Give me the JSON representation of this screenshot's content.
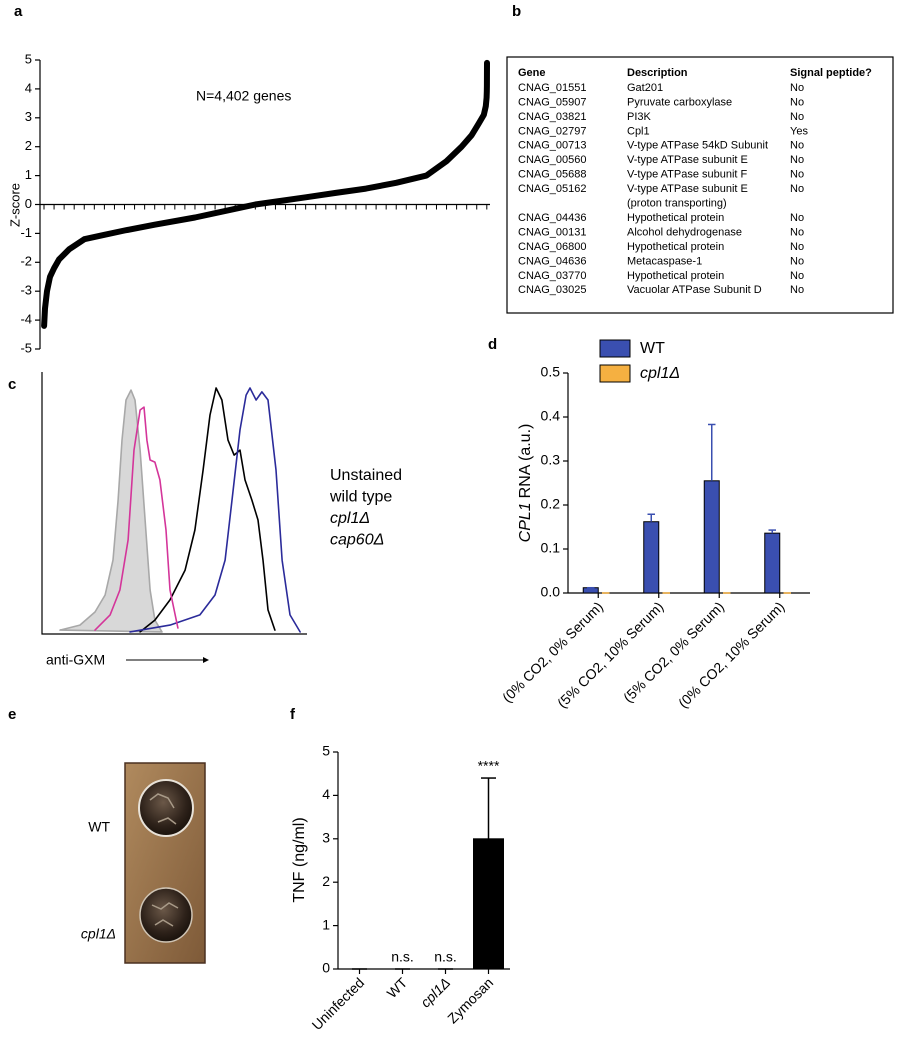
{
  "panel_labels": [
    "a",
    "b",
    "c",
    "d",
    "e",
    "f"
  ],
  "chart_data": [
    {
      "type": "line",
      "annotation": "N=4,402 genes",
      "ylabel": "Z-score",
      "color": "#000000",
      "x": [
        1,
        10,
        30,
        60,
        100,
        150,
        250,
        400,
        600,
        800,
        1100,
        1500,
        1900,
        2100,
        2300,
        2600,
        2900,
        3200,
        3500,
        3800,
        4000,
        4150,
        4250,
        4320,
        4370,
        4390,
        4398,
        4400,
        4401,
        4402
      ],
      "values": [
        -4.2,
        -3.6,
        -3.0,
        -2.5,
        -2.2,
        -1.9,
        -1.55,
        -1.2,
        -1.05,
        -0.9,
        -0.7,
        -0.45,
        -0.15,
        0,
        0.1,
        0.25,
        0.4,
        0.55,
        0.75,
        1.0,
        1.5,
        2.0,
        2.4,
        2.8,
        3.1,
        3.4,
        3.7,
        3.9,
        4.1,
        4.9
      ],
      "xlim": [
        0,
        4402
      ],
      "xticks": [
        0,
        100,
        200,
        300,
        400,
        500,
        600,
        700,
        800,
        900,
        1000,
        1100,
        1200,
        1300,
        1400,
        1500,
        1600,
        1700,
        1800,
        1900,
        2000,
        2100,
        2200,
        2300,
        2400,
        2500,
        2600,
        2700,
        2800,
        2900,
        3000,
        3100,
        3200,
        3300,
        3400,
        3500,
        3600,
        3700,
        3800,
        3900,
        4000,
        4100,
        4200,
        4300,
        4400
      ],
      "ylim": [
        -5,
        5
      ],
      "yticks": [
        -5,
        -4,
        -3,
        -2,
        -1,
        0,
        1,
        2,
        3,
        4,
        5
      ]
    },
    {
      "type": "line",
      "xlabel": "anti-GXM",
      "xlim": [
        0,
        100
      ],
      "ylim": [
        0,
        100
      ],
      "series": [
        {
          "name": "Unstained",
          "color": "#a8a8a8",
          "fill": true,
          "x": [
            6.8,
            14.3,
            20.0,
            23.8,
            26.8,
            28.7,
            30.2,
            31.7,
            33.6,
            35.1,
            37.0,
            38.9,
            40.8,
            42.6,
            45.3
          ],
          "values": [
            1.5,
            3.4,
            8.4,
            14.9,
            28.2,
            51.1,
            74.0,
            89.3,
            93.1,
            89.3,
            70.2,
            43.5,
            16.8,
            5.3,
            0.8
          ]
        },
        {
          "name": "wild type",
          "color": "#000000",
          "x": [
            37.0,
            42.6,
            48.3,
            54.0,
            57.7,
            60.8,
            63.4,
            65.7,
            67.9,
            70.2,
            72.5,
            74.7,
            76.6,
            79.2,
            81.5,
            83.4,
            85.3,
            87.9
          ],
          "values": [
            0.8,
            5.3,
            13.0,
            24.4,
            39.7,
            62.6,
            83.6,
            93.9,
            89.3,
            74.0,
            68.3,
            70.2,
            58.8,
            51.1,
            43.5,
            28.2,
            9.2,
            1.5
          ]
        },
        {
          "name": "cpl1Δ",
          "color": "#2b2b9a",
          "italic": true,
          "x": [
            33.2,
            48.3,
            59.6,
            65.3,
            69.1,
            71.7,
            74.7,
            77.0,
            78.5,
            80.8,
            83.0,
            85.3,
            88.3,
            90.6,
            93.6,
            97.4
          ],
          "values": [
            0.8,
            3.4,
            7.3,
            14.9,
            28.2,
            51.1,
            77.9,
            91.2,
            93.9,
            89.3,
            92.4,
            89.3,
            62.6,
            28.2,
            7.3,
            0.8
          ]
        },
        {
          "name": "cap60Δ",
          "color": "#d4359a",
          "italic": true,
          "x": [
            20.0,
            25.7,
            29.4,
            32.5,
            34.7,
            37.0,
            38.5,
            39.6,
            40.8,
            42.6,
            44.5,
            46.8,
            48.3,
            51.3
          ],
          "values": [
            1.5,
            7.3,
            16.8,
            35.9,
            70.2,
            85.5,
            86.6,
            74.0,
            66.4,
            65.6,
            58.8,
            39.7,
            16.8,
            2.3
          ]
        }
      ]
    },
    {
      "type": "bar",
      "ylabel": [
        "CPL1",
        "RNA (a.u.)"
      ],
      "categories": [
        "(0% CO2, 0% Serum)",
        "(5% CO2, 10% Serum)",
        "(5% CO2, 0% Serum)",
        "(0% CO2, 10% Serum)"
      ],
      "series": [
        {
          "name": "WT",
          "color": "#3a4fb0",
          "values": [
            0.012,
            0.162,
            0.255,
            0.136
          ],
          "errors": [
            0,
            0.017,
            0.128,
            0.007
          ]
        },
        {
          "name": "cpl1Δ",
          "color": "#f5b041",
          "italic": true,
          "values": [
            0,
            0,
            0,
            0
          ],
          "errors": [
            0,
            0,
            0,
            0
          ]
        }
      ],
      "ylim": [
        0,
        0.5
      ],
      "yticks": [
        {
          "value": 0,
          "label": "0.0"
        },
        0.1,
        0.2,
        0.3,
        0.4,
        0.5
      ]
    },
    {
      "type": "bar",
      "ylabel": "TNF (ng/ml)",
      "categories": [
        "Uninfected",
        "WT",
        "cpl1Δ",
        "Zymosan"
      ],
      "italic_categories": [
        2
      ],
      "series": [
        {
          "color": "#000000",
          "values": [
            0,
            0,
            0,
            3.0
          ],
          "errors": [
            0,
            0,
            0,
            1.4
          ]
        }
      ],
      "annotations": [
        null,
        "n.s.",
        "n.s.",
        "****"
      ],
      "ylim": [
        0,
        5
      ],
      "yticks": [
        0,
        1,
        2,
        3,
        4,
        5
      ]
    }
  ],
  "table": {
    "header": [
      "Gene",
      "Description",
      "Signal peptide?"
    ],
    "rows": [
      [
        "CNAG_01551",
        "Gat201",
        "No"
      ],
      [
        "CNAG_05907",
        "Pyruvate carboxylase",
        "No"
      ],
      [
        "CNAG_03821",
        "PI3K",
        "No"
      ],
      [
        "CNAG_02797",
        "Cpl1",
        "Yes"
      ],
      [
        "CNAG_00713",
        "V-type ATPase 54kD Subunit",
        "No"
      ],
      [
        "CNAG_00560",
        "V-type ATPase subunit E",
        "No"
      ],
      [
        "CNAG_05688",
        "V-type ATPase subunit F",
        "No"
      ],
      [
        "CNAG_05162",
        "V-type ATPase subunit E",
        "No"
      ],
      [
        null,
        "(proton transporting)",
        null
      ],
      [
        "CNAG_04436",
        "Hypothetical protein",
        "No"
      ],
      [
        "CNAG_00131",
        "Alcohol dehydrogenase",
        "No"
      ],
      [
        "CNAG_06800",
        "Hypothetical protein",
        "No"
      ],
      [
        "CNAG_04636",
        "Metacaspase-1",
        "No"
      ],
      [
        "CNAG_03770",
        "Hypothetical protein",
        "No"
      ],
      [
        "CNAG_03025",
        "Vacuolar ATPase Subunit D",
        "No"
      ]
    ],
    "highlight_row": 3,
    "highlight_color": "#e8231f"
  },
  "image": {
    "labels": [
      "WT",
      "cpl1Δ"
    ]
  }
}
